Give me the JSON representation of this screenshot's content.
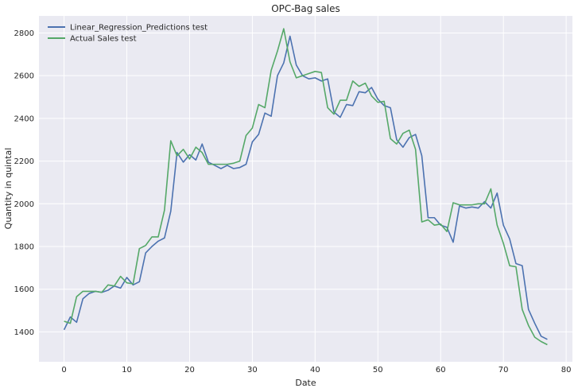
{
  "chart_data": {
    "type": "line",
    "title": "OPC-Bag sales",
    "xlabel": "Date",
    "ylabel": "Quantity in quintal",
    "xlim": [
      -4,
      81
    ],
    "ylim": [
      1260,
      2880
    ],
    "xticks": [
      0,
      10,
      20,
      30,
      40,
      50,
      60,
      70,
      80
    ],
    "yticks": [
      1400,
      1600,
      1800,
      2000,
      2200,
      2400,
      2600,
      2800
    ],
    "grid": true,
    "legend_position": "top-left",
    "series": [
      {
        "name": "Linear_Regression_Predictions test",
        "color": "#4c72b0",
        "x": [
          0,
          1,
          2,
          3,
          4,
          5,
          6,
          7,
          8,
          9,
          10,
          11,
          12,
          13,
          14,
          15,
          16,
          17,
          18,
          19,
          20,
          21,
          22,
          23,
          24,
          25,
          26,
          27,
          28,
          29,
          30,
          31,
          32,
          33,
          34,
          35,
          36,
          37,
          38,
          39,
          40,
          41,
          42,
          43,
          44,
          45,
          46,
          47,
          48,
          49,
          50,
          51,
          52,
          53,
          54,
          55,
          56,
          57,
          58,
          59,
          60,
          61,
          62,
          63,
          64,
          65,
          66,
          67,
          68,
          69,
          70,
          71,
          72,
          73,
          74,
          75,
          76,
          77
        ],
        "values": [
          1410,
          1470,
          1445,
          1555,
          1580,
          1590,
          1585,
          1595,
          1615,
          1605,
          1655,
          1620,
          1635,
          1770,
          1800,
          1825,
          1840,
          1965,
          2240,
          2195,
          2230,
          2205,
          2280,
          2195,
          2180,
          2165,
          2180,
          2165,
          2170,
          2185,
          2290,
          2325,
          2425,
          2410,
          2600,
          2660,
          2785,
          2650,
          2600,
          2585,
          2590,
          2575,
          2585,
          2430,
          2405,
          2465,
          2460,
          2525,
          2520,
          2545,
          2490,
          2460,
          2450,
          2300,
          2265,
          2310,
          2325,
          2225,
          1935,
          1935,
          1900,
          1890,
          1820,
          1990,
          1980,
          1985,
          1980,
          2010,
          1980,
          2050,
          1900,
          1835,
          1720,
          1710,
          1505,
          1440,
          1380,
          1365
        ]
      },
      {
        "name": "Actual Sales test",
        "color": "#55a868",
        "x": [
          0,
          1,
          2,
          3,
          4,
          5,
          6,
          7,
          8,
          9,
          10,
          11,
          12,
          13,
          14,
          15,
          16,
          17,
          18,
          19,
          20,
          21,
          22,
          23,
          24,
          25,
          26,
          27,
          28,
          29,
          30,
          31,
          32,
          33,
          34,
          35,
          36,
          37,
          38,
          39,
          40,
          41,
          42,
          43,
          44,
          45,
          46,
          47,
          48,
          49,
          50,
          51,
          52,
          53,
          54,
          55,
          56,
          57,
          58,
          59,
          60,
          61,
          62,
          63,
          64,
          65,
          66,
          67,
          68,
          69,
          70,
          71,
          72,
          73,
          74,
          75,
          76,
          77
        ],
        "values": [
          1450,
          1440,
          1565,
          1590,
          1590,
          1590,
          1585,
          1620,
          1615,
          1660,
          1630,
          1625,
          1790,
          1805,
          1845,
          1845,
          1970,
          2295,
          2225,
          2255,
          2210,
          2265,
          2240,
          2185,
          2185,
          2185,
          2185,
          2190,
          2200,
          2320,
          2355,
          2465,
          2450,
          2625,
          2715,
          2820,
          2665,
          2590,
          2600,
          2610,
          2620,
          2615,
          2450,
          2420,
          2485,
          2485,
          2575,
          2550,
          2565,
          2505,
          2475,
          2480,
          2305,
          2280,
          2330,
          2345,
          2255,
          1915,
          1925,
          1900,
          1905,
          1870,
          2005,
          1995,
          1995,
          1995,
          2000,
          2000,
          2070,
          1900,
          1815,
          1710,
          1705,
          1505,
          1430,
          1375,
          1355,
          1340
        ]
      }
    ]
  }
}
